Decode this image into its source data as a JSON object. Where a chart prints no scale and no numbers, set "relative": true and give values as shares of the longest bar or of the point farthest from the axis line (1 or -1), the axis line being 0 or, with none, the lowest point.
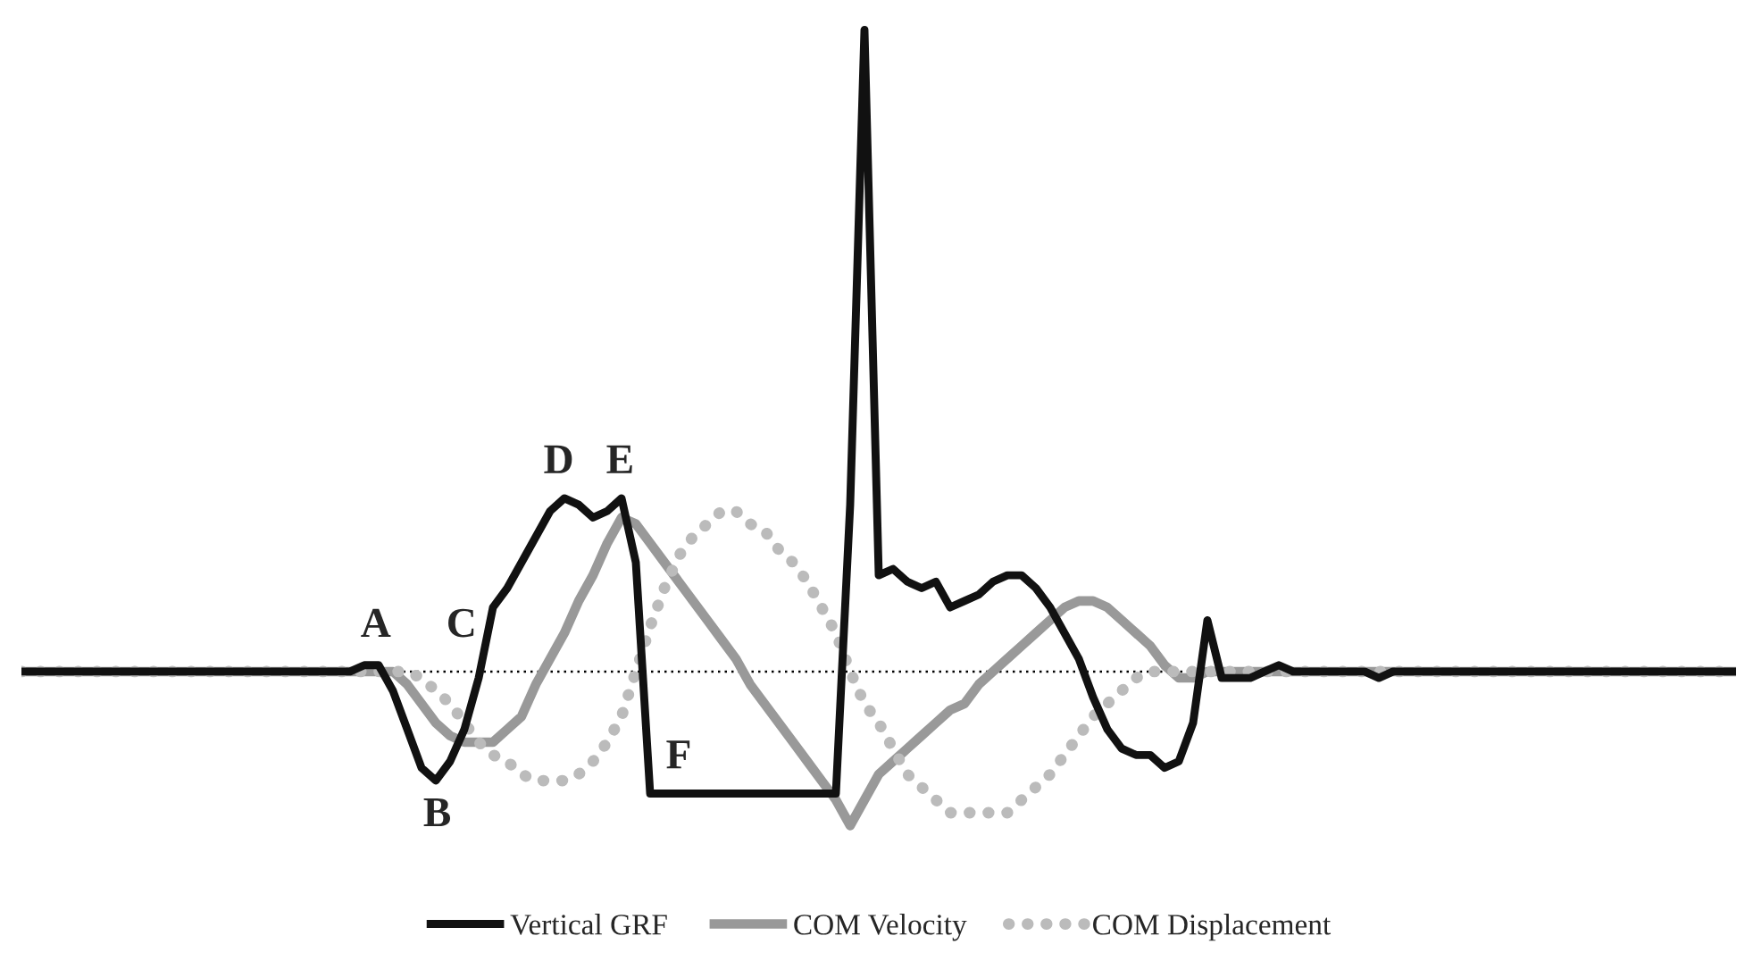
{
  "chart_data": {
    "type": "line",
    "relative": true,
    "legend": "bottom",
    "marker": "none",
    "categories": [
      null,
      null,
      null,
      null,
      null,
      null,
      null,
      null,
      null,
      null,
      null,
      null,
      null,
      null,
      null,
      null,
      null,
      null,
      null,
      null,
      null,
      null,
      null,
      null,
      null,
      null,
      null,
      null,
      null,
      null,
      null,
      null,
      null,
      null,
      null,
      null,
      null,
      null,
      null,
      null,
      null,
      null,
      null,
      null,
      null,
      null,
      null,
      null,
      null,
      null,
      null,
      null,
      null,
      null,
      null,
      null,
      null,
      null,
      null,
      null,
      null,
      null,
      null,
      null,
      null,
      null,
      null,
      null,
      null,
      null,
      null,
      null,
      null,
      null,
      null,
      null,
      null,
      null,
      null,
      null,
      null,
      null,
      null,
      null,
      null,
      null,
      null,
      null,
      null,
      null,
      null,
      null,
      null,
      null,
      null,
      null,
      null,
      null,
      null,
      null,
      null,
      null,
      null,
      null,
      null,
      null,
      null,
      null,
      null,
      null,
      null,
      null,
      null,
      null,
      null,
      null,
      null,
      null,
      null,
      null,
      null
    ],
    "series": [
      {
        "name": "Vertical GRF",
        "color": "#111111",
        "line_style": "solid",
        "values": [
          0,
          0,
          0,
          0,
          0,
          0,
          0,
          0,
          0,
          0,
          0,
          0,
          0,
          0,
          0,
          0,
          0,
          0,
          0,
          0,
          0,
          0,
          0,
          0,
          0.01,
          0.01,
          -0.03,
          -0.09,
          -0.15,
          -0.17,
          -0.14,
          -0.09,
          -0.01,
          0.1,
          0.13,
          0.17,
          0.21,
          0.25,
          0.27,
          0.26,
          0.24,
          0.25,
          0.27,
          0.17,
          -0.19,
          -0.19,
          -0.19,
          -0.19,
          -0.19,
          -0.19,
          -0.19,
          -0.19,
          -0.19,
          -0.19,
          -0.19,
          -0.19,
          -0.19,
          -0.19,
          0.26,
          1.0,
          0.15,
          0.16,
          0.14,
          0.13,
          0.14,
          0.1,
          0.11,
          0.12,
          0.14,
          0.15,
          0.15,
          0.13,
          0.1,
          0.06,
          0.02,
          -0.04,
          -0.09,
          -0.12,
          -0.13,
          -0.13,
          -0.15,
          -0.14,
          -0.08,
          0.08,
          -0.01,
          -0.01,
          -0.01,
          0,
          0.01,
          0,
          0,
          0,
          0,
          0,
          0,
          -0.01,
          0,
          0,
          0,
          0,
          0,
          0,
          0,
          0,
          0,
          0,
          0,
          0,
          0,
          0,
          0,
          0,
          0,
          0,
          0,
          0,
          0,
          0,
          0,
          0,
          0
        ]
      },
      {
        "name": "COM Velocity",
        "color": "#999999",
        "line_style": "solid",
        "values": [
          0,
          0,
          0,
          0,
          0,
          0,
          0,
          0,
          0,
          0,
          0,
          0,
          0,
          0,
          0,
          0,
          0,
          0,
          0,
          0,
          0,
          0,
          0,
          0,
          0,
          0,
          0,
          -0.02,
          -0.05,
          -0.08,
          -0.1,
          -0.11,
          -0.11,
          -0.11,
          -0.09,
          -0.07,
          -0.02,
          0.02,
          0.06,
          0.11,
          0.15,
          0.2,
          0.24,
          0.23,
          0.2,
          0.17,
          0.14,
          0.11,
          0.08,
          0.05,
          0.02,
          -0.02,
          -0.05,
          -0.08,
          -0.11,
          -0.14,
          -0.17,
          -0.2,
          -0.24,
          -0.2,
          -0.16,
          -0.14,
          -0.12,
          -0.1,
          -0.08,
          -0.06,
          -0.05,
          -0.02,
          0,
          0.02,
          0.04,
          0.06,
          0.08,
          0.1,
          0.11,
          0.11,
          0.1,
          0.08,
          0.06,
          0.04,
          0.01,
          -0.01,
          -0.01,
          0,
          0,
          0,
          0,
          0,
          0,
          0,
          0,
          0,
          0,
          0,
          0,
          0,
          0,
          0,
          0,
          0,
          0,
          0,
          0,
          0,
          0,
          0,
          0,
          0,
          0,
          0,
          0,
          0,
          0,
          0,
          0,
          0,
          0,
          0,
          0,
          0,
          0
        ]
      },
      {
        "name": "COM Displacement",
        "color": "#bbbbbb",
        "line_style": "dotted",
        "values": [
          0,
          0,
          0,
          0,
          0,
          0,
          0,
          0,
          0,
          0,
          0,
          0,
          0,
          0,
          0,
          0,
          0,
          0,
          0,
          0,
          0,
          0,
          0,
          0,
          0,
          0,
          0,
          0,
          -0.01,
          -0.03,
          -0.05,
          -0.08,
          -0.11,
          -0.13,
          -0.14,
          -0.16,
          -0.17,
          -0.17,
          -0.17,
          -0.16,
          -0.14,
          -0.11,
          -0.07,
          0,
          0.07,
          0.13,
          0.18,
          0.21,
          0.23,
          0.25,
          0.25,
          0.23,
          0.22,
          0.19,
          0.17,
          0.14,
          0.1,
          0.06,
          0,
          -0.05,
          -0.08,
          -0.12,
          -0.16,
          -0.18,
          -0.2,
          -0.22,
          -0.22,
          -0.22,
          -0.22,
          -0.22,
          -0.2,
          -0.18,
          -0.16,
          -0.13,
          -0.1,
          -0.07,
          -0.05,
          -0.03,
          -0.01,
          0,
          0,
          0,
          0,
          0,
          0,
          0,
          0,
          0,
          0,
          0,
          0,
          0,
          0,
          0,
          0,
          0,
          0,
          0,
          0,
          0,
          0,
          0,
          0,
          0,
          0,
          0,
          0,
          0,
          0,
          0,
          0,
          0,
          0,
          0,
          0,
          0,
          0,
          0,
          0,
          0,
          0
        ]
      }
    ],
    "ref_lines": [
      {
        "axis": "y",
        "value": 0,
        "color": "#000000",
        "line_style": "dotted"
      }
    ],
    "annotations": [
      "A",
      "B",
      "C",
      "D",
      "E",
      "F"
    ]
  }
}
